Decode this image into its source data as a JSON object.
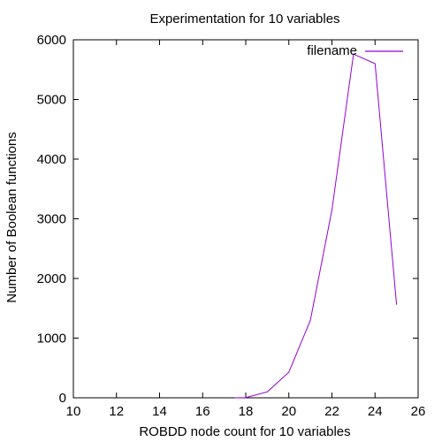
{
  "chart_data": {
    "type": "line",
    "title": "Experimentation for 10 variables",
    "xlabel": "ROBDD node count for 10 variables",
    "ylabel": "Number of Boolean functions",
    "xlim": [
      10,
      26
    ],
    "ylim": [
      0,
      6000
    ],
    "xticks": [
      "10",
      "12",
      "14",
      "16",
      "18",
      "20",
      "22",
      "24",
      "26"
    ],
    "yticks": [
      "0",
      "1000",
      "2000",
      "3000",
      "4000",
      "5000",
      "6000"
    ],
    "legend_position": "top-right",
    "series": [
      {
        "name": "filename",
        "color": "#9400d3",
        "x": [
          17.5,
          18,
          19,
          20,
          21,
          22,
          23,
          24,
          25
        ],
        "y": [
          0,
          5,
          100,
          430,
          1300,
          3150,
          5760,
          5600,
          1560
        ]
      }
    ]
  }
}
